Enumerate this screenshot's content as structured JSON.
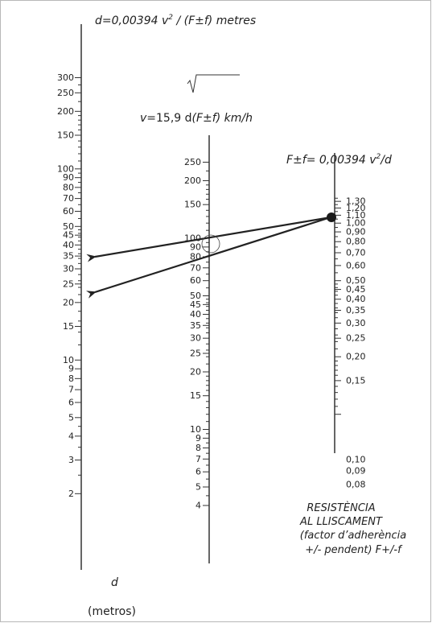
{
  "formulas": {
    "d_formula_head": "d=0,00394 ",
    "d_formula_v": "v",
    "d_formula_exp": "2",
    "d_formula_tail": " / (F±f) metres",
    "v_formula_v": "v",
    "v_formula_mid": "=15,9  d",
    "v_formula_tail": "(F±f) km/h",
    "f_formula_head": "F±f= 0,00394 ",
    "f_formula_v": "v",
    "f_formula_exp": "2",
    "f_formula_tail": "/d"
  },
  "d_axis": {
    "labels": [
      "300",
      "250",
      "200",
      "150",
      "100",
      "90",
      "80",
      "70",
      "60",
      "50",
      "45",
      "40",
      "35",
      "30",
      "25",
      "20",
      "15",
      "10",
      "9",
      "8",
      "7",
      "6",
      "5",
      "4",
      "3",
      "2"
    ],
    "title": "d",
    "unit": "(metros)"
  },
  "v_axis": {
    "labels": [
      "250",
      "200",
      "150",
      "100",
      "90",
      "80",
      "70",
      "60",
      "50",
      "45",
      "40",
      "35",
      "30",
      "25",
      "20",
      "15",
      "10",
      "9",
      "8",
      "7",
      "6",
      "5",
      "4"
    ]
  },
  "f_axis": {
    "labels": [
      "1,30",
      "1,20",
      "1,10",
      "1,00",
      "0,90",
      "0,80",
      "0,70",
      "0,60",
      "0,50",
      "0,45",
      "0,40",
      "0,35",
      "0,30",
      "0,25",
      "0,20",
      "0,15",
      "0,10",
      "0,09",
      "0,08"
    ],
    "caption": [
      "RESISTÈNCIA",
      "AL LLISCAMENT",
      "(factor d’adherència",
      "+/- pendent) F+/-f"
    ]
  },
  "colors": {
    "ink": "#222222",
    "line": "#333333",
    "frame": "#b8b8b8",
    "pivot": "#1a1a1a"
  },
  "marks": {
    "pivot": "filled-dot",
    "arrows": 2,
    "circle": "open-circle"
  }
}
